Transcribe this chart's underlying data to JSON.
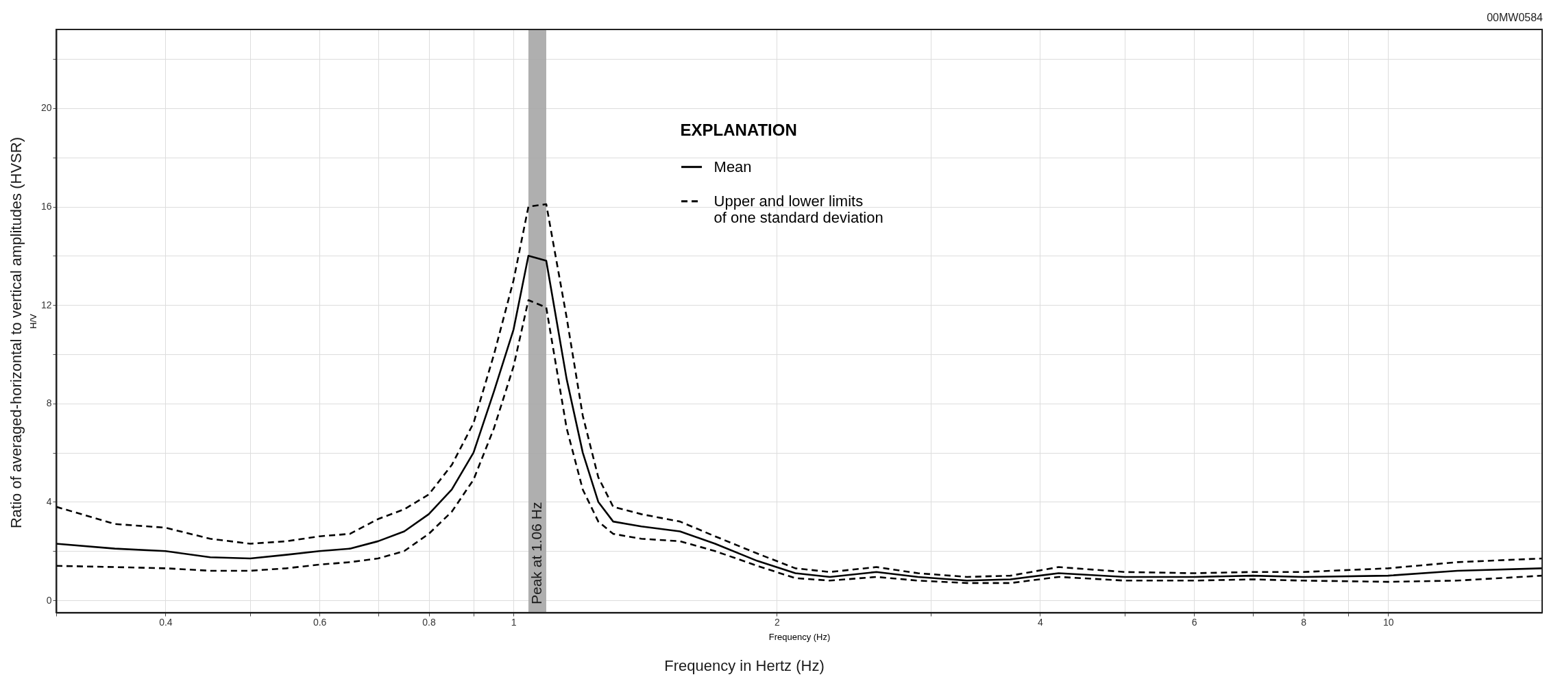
{
  "chart_data": {
    "type": "line",
    "title": "00MW0584",
    "xlabel": "Frequency (Hz)",
    "ylabel": "H/V",
    "legend_title": "EXPLANATION",
    "legend": "top",
    "grid": true,
    "log": "x",
    "annotations": [
      "Frequency in Hertz (Hz)",
      "Ratio of averaged-horizontal to vertical amplitudes (HVSR)"
    ],
    "xlim": [
      0.3,
      15
    ],
    "ylim": [
      -0.5,
      23.2
    ],
    "xticks": [
      {
        "value": 0.3,
        "label": null
      },
      0.4,
      {
        "value": 0.5,
        "label": null
      },
      0.6,
      {
        "value": 0.7,
        "label": null
      },
      0.8,
      {
        "value": 0.9,
        "label": null
      },
      1,
      2,
      {
        "value": 3,
        "label": null
      },
      4,
      {
        "value": 5,
        "label": null
      },
      6,
      {
        "value": 7,
        "label": null
      },
      8,
      {
        "value": 9,
        "label": null
      },
      10
    ],
    "yticks": [
      0,
      {
        "value": 2,
        "label": null
      },
      4,
      {
        "value": 6,
        "label": null
      },
      8,
      {
        "value": 10,
        "label": null
      },
      12,
      {
        "value": 14,
        "label": null
      },
      16,
      {
        "value": 18,
        "label": null
      },
      20,
      {
        "value": 22,
        "label": null
      }
    ],
    "bands": [
      {
        "axis": "x",
        "from": 1.04,
        "to": 1.09,
        "label": "Peak at 1.06 Hz",
        "color": "#a6a6a6"
      }
    ],
    "x": [
      0.3,
      0.35,
      0.4,
      0.45,
      0.5,
      0.55,
      0.6,
      0.65,
      0.7,
      0.75,
      0.8,
      0.85,
      0.9,
      0.95,
      1.0,
      1.04,
      1.09,
      1.15,
      1.2,
      1.25,
      1.3,
      1.4,
      1.55,
      1.7,
      1.9,
      2.1,
      2.3,
      2.6,
      2.9,
      3.3,
      3.7,
      4.2,
      5,
      6,
      7,
      8,
      10,
      12,
      15
    ],
    "series": [
      {
        "name": "Mean",
        "color": "#000000",
        "line_style": "solid",
        "values": [
          2.3,
          2.1,
          2.0,
          1.75,
          1.7,
          1.85,
          2.0,
          2.1,
          2.4,
          2.8,
          3.5,
          4.5,
          6,
          8.5,
          11,
          14.0,
          13.8,
          9,
          6,
          4,
          3.2,
          3.0,
          2.8,
          2.3,
          1.6,
          1.1,
          0.95,
          1.15,
          0.95,
          0.8,
          0.85,
          1.1,
          0.95,
          0.95,
          1.0,
          0.95,
          1.0,
          1.2,
          1.3
        ]
      },
      {
        "name": "Upper and lower limits\nof one standard deviation",
        "color": "#000000",
        "line_style": "dashed",
        "values": [
          3.8,
          3.1,
          2.95,
          2.5,
          2.3,
          2.4,
          2.6,
          2.7,
          3.3,
          3.7,
          4.3,
          5.5,
          7.2,
          10,
          13,
          16.0,
          16.1,
          11.5,
          7.5,
          5,
          3.8,
          3.5,
          3.2,
          2.6,
          1.9,
          1.3,
          1.15,
          1.35,
          1.1,
          0.95,
          1.0,
          1.35,
          1.15,
          1.1,
          1.15,
          1.15,
          1.3,
          1.55,
          1.7
        ]
      },
      {
        "color": "#000000",
        "line_style": "dashed",
        "values": [
          1.4,
          1.35,
          1.3,
          1.2,
          1.2,
          1.3,
          1.45,
          1.55,
          1.7,
          2.0,
          2.7,
          3.6,
          4.9,
          7,
          9.5,
          12.2,
          11.9,
          7,
          4.5,
          3.2,
          2.7,
          2.5,
          2.4,
          2.0,
          1.4,
          0.9,
          0.8,
          0.95,
          0.8,
          0.7,
          0.7,
          0.95,
          0.8,
          0.8,
          0.85,
          0.8,
          0.75,
          0.8,
          1.0
        ]
      }
    ]
  }
}
